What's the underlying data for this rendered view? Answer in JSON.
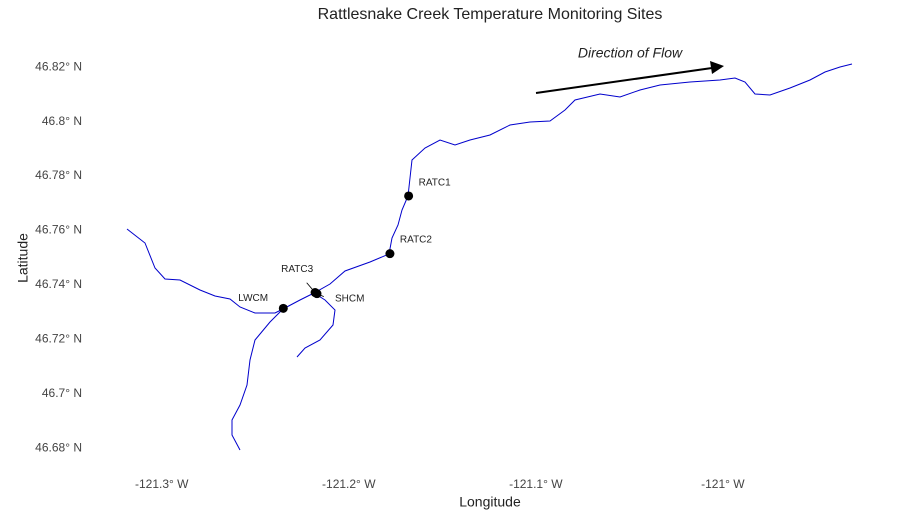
{
  "chart_data": {
    "type": "map",
    "title": "Rattlesnake Creek Temperature Monitoring Sites",
    "x_label": "Longitude",
    "y_label": "Latitude",
    "annotation": "Direction of Flow",
    "xlim": [
      -121.333,
      -120.916
    ],
    "ylim": [
      46.672,
      46.83
    ],
    "xticks": [
      {
        "value": -121.3,
        "label": "-121.3° W"
      },
      {
        "value": -121.2,
        "label": "-121.2° W"
      },
      {
        "value": -121.1,
        "label": "-121.1° W"
      },
      {
        "value": -121.0,
        "label": "-121° W"
      }
    ],
    "yticks": [
      {
        "value": 46.68,
        "label": "46.68° N"
      },
      {
        "value": 46.7,
        "label": "46.7° N"
      },
      {
        "value": 46.72,
        "label": "46.72° N"
      },
      {
        "value": 46.74,
        "label": "46.74° N"
      },
      {
        "value": 46.76,
        "label": "46.76° N"
      },
      {
        "value": 46.78,
        "label": "46.78° N"
      },
      {
        "value": 46.8,
        "label": "46.8° N"
      },
      {
        "value": 46.82,
        "label": "46.82° N"
      }
    ],
    "point_color": "#000000",
    "river_color": "#0000cc",
    "sites": [
      {
        "name": "RATC1",
        "lon": -121.168,
        "lat": 46.7727
      },
      {
        "name": "RATC2",
        "lon": -121.178,
        "lat": 46.7515
      },
      {
        "name": "RATC3",
        "lon": -121.218,
        "lat": 46.7372
      },
      {
        "name": "LWCM",
        "lon": -121.235,
        "lat": 46.7314
      },
      {
        "name": "SHCM",
        "lon": -121.217,
        "lat": 46.7368
      }
    ]
  }
}
